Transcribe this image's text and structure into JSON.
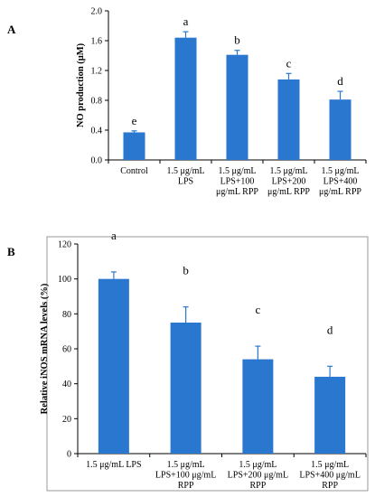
{
  "chart_data": [
    {
      "panel_label": "A",
      "type": "bar",
      "title": "",
      "ylabel": "NO production (μM)",
      "xlabel": "",
      "ylim": [
        0,
        2.0
      ],
      "ytick_labels": [
        "0.0",
        "0.4",
        "0.8",
        "1.2",
        "1.6",
        "2.0"
      ],
      "ytick_values": [
        0,
        0.4,
        0.8,
        1.2,
        1.6,
        2.0
      ],
      "categories": [
        [
          "Control"
        ],
        [
          "1.5 μg/mL",
          "LPS"
        ],
        [
          "1.5 μg/mL",
          "LPS+100",
          "μg/mL RPP"
        ],
        [
          "1.5 μg/mL",
          "LPS+200",
          "μg/mL RPP"
        ],
        [
          "1.5 μg/mL",
          "LPS+400",
          "μg/mL RPP"
        ]
      ],
      "values": [
        0.37,
        1.64,
        1.41,
        1.08,
        0.81
      ],
      "errors": [
        0.02,
        0.08,
        0.06,
        0.08,
        0.11
      ],
      "significance": [
        "e",
        "a",
        "b",
        "c",
        "d"
      ],
      "bar_color": "#2a77cf",
      "grid": false
    },
    {
      "panel_label": "B",
      "type": "bar",
      "title": "",
      "ylabel": "Relative iNOS mRNA levels (%)",
      "xlabel": "",
      "ylim": [
        0,
        120
      ],
      "ytick_labels": [
        "0",
        "20",
        "40",
        "60",
        "80",
        "100",
        "120"
      ],
      "ytick_values": [
        0,
        20,
        40,
        60,
        80,
        100,
        120
      ],
      "categories": [
        [
          "1.5 μg/mL LPS"
        ],
        [
          "1.5 μg/mL",
          "LPS+100 μg/mL",
          "RPP"
        ],
        [
          "1.5 μg/mL",
          "LPS+200 μg/mL",
          "RPP"
        ],
        [
          "1.5 μg/mL",
          "LPS+400 μg/mL",
          "RPP"
        ]
      ],
      "values": [
        100,
        75,
        54,
        44
      ],
      "errors": [
        4,
        9,
        7.5,
        6
      ],
      "significance": [
        "a",
        "b",
        "c",
        "d"
      ],
      "bar_color": "#2a77cf",
      "grid": false
    }
  ]
}
